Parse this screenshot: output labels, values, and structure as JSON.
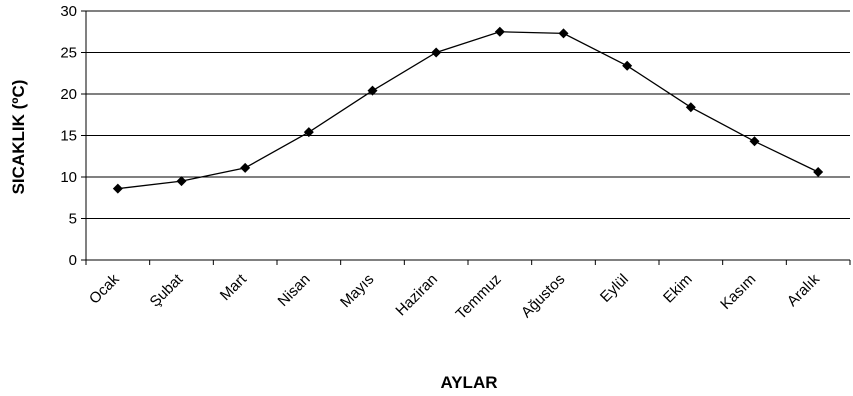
{
  "chart_data": {
    "type": "line",
    "title": "",
    "xlabel": "AYLAR",
    "ylabel": "SICAKLIK (ºC)",
    "categories": [
      "Ocak",
      "Şubat",
      "Mart",
      "Nisan",
      "Mayıs",
      "Haziran",
      "Temmuz",
      "Ağustos",
      "Eylül",
      "Ekim",
      "Kasım",
      "Aralık"
    ],
    "series": [
      {
        "values": [
          8.6,
          9.5,
          11.1,
          15.4,
          20.4,
          25.0,
          27.5,
          27.3,
          23.4,
          18.4,
          14.3,
          10.6
        ]
      }
    ],
    "ylim": [
      0,
      30
    ],
    "yticks": [
      0,
      5,
      10,
      15,
      20,
      25,
      30
    ],
    "grid": true,
    "legend": "none",
    "colors": {
      "line": "#000000",
      "marker": "#000000",
      "grid": "#000000"
    }
  }
}
